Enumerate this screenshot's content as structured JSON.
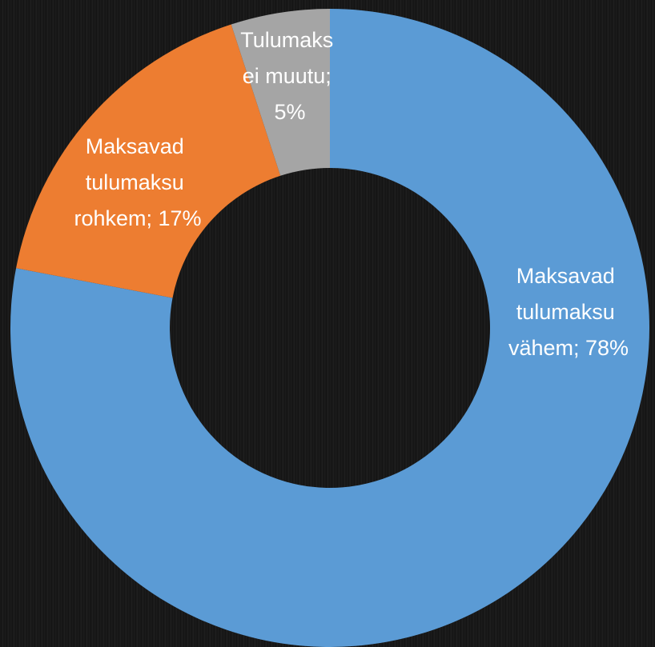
{
  "chart_data": {
    "type": "donut",
    "values": [
      78,
      17,
      5
    ],
    "value_labels": [
      "Maksavad tulumaksu vähem; 78%",
      "Maksavad tulumaksu rohkem; 17%",
      "Tulumaks ei muutu; 5%"
    ],
    "colors": [
      "#5b9bd5",
      "#ed7d31",
      "#a5a5a5"
    ]
  }
}
